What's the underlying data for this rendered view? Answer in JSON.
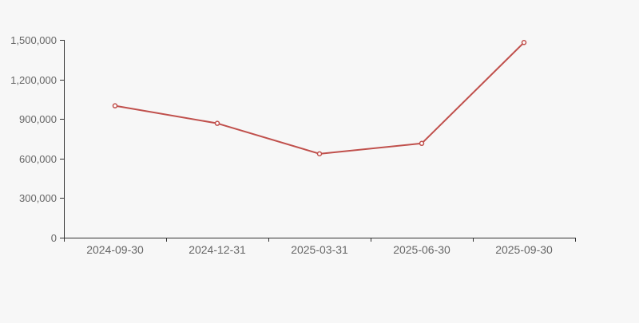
{
  "chart": {
    "background_color": "#f7f7f7",
    "line_color": "#c0504c",
    "marker_fill": "#ffffff",
    "axis_color": "#333333",
    "label_color": "#666666"
  },
  "chart_data": {
    "type": "line",
    "title": "",
    "xlabel": "",
    "ylabel": "",
    "categories": [
      "2024-09-30",
      "2024-12-31",
      "2025-03-31",
      "2025-06-30",
      "2025-09-30"
    ],
    "series": [
      {
        "name": "value",
        "values": [
          1000000,
          867000,
          636000,
          715000,
          1480000
        ]
      }
    ],
    "ylim": [
      0,
      1500000
    ],
    "y_ticks": [
      0,
      300000,
      600000,
      900000,
      1200000,
      1500000
    ],
    "y_tick_labels": [
      "0",
      "300,000",
      "600,000",
      "900,000",
      "1,200,000",
      "1,500,000"
    ],
    "grid": false,
    "legend": "none",
    "marker": "open-circle"
  }
}
